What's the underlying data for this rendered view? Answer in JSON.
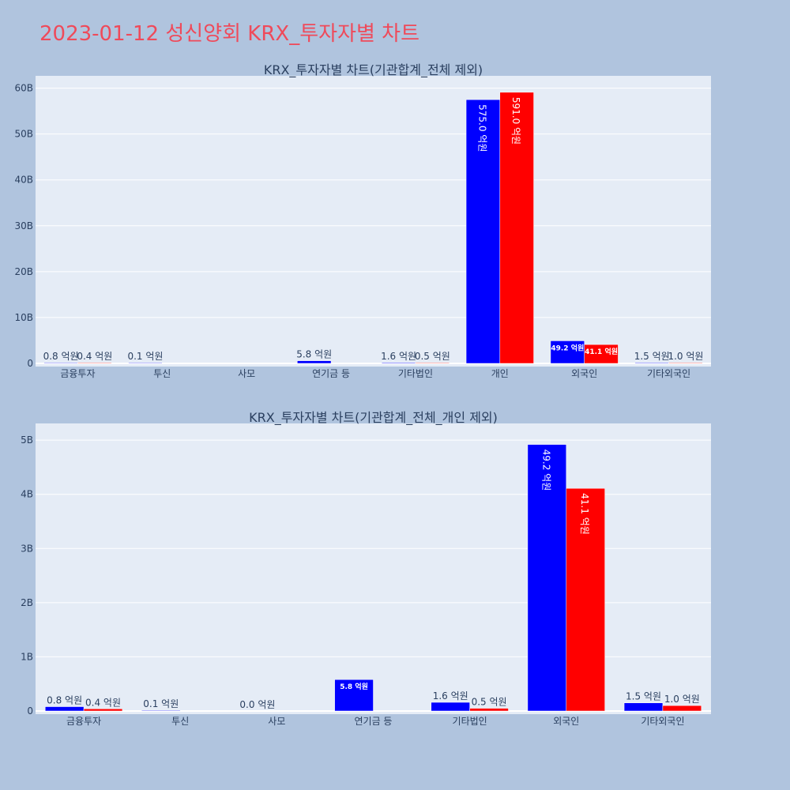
{
  "page": {
    "title": "2023-01-12 성신양회 KRX_투자자별 차트"
  },
  "colors": {
    "buy": "#0000ff",
    "sell": "#ff0000",
    "plot_bg": "#e5ecf6",
    "page_bg": "#b0c4de",
    "title": "#ef4a5a"
  },
  "chart_data": [
    {
      "type": "bar",
      "title": "KRX_투자자별 차트(기관합계_전체 제외)",
      "categories": [
        "금융투자",
        "투신",
        "사모",
        "연기금 등",
        "기타법인",
        "개인",
        "외국인",
        "기타외국인"
      ],
      "series": [
        {
          "values": [
            80000000,
            10000000,
            null,
            580000000,
            160000000,
            57500000000,
            4920000000,
            150000000
          ],
          "labels": [
            "0.8 억원",
            "0.1 억원",
            "",
            "5.8 억원",
            "1.6 억원",
            "575.0 억원",
            "49.2 억원",
            "1.5 억원"
          ]
        },
        {
          "values": [
            40000000,
            null,
            null,
            null,
            50000000,
            59100000000,
            4110000000,
            100000000
          ],
          "labels": [
            "0.4 억원",
            "",
            "",
            "",
            "0.5 억원",
            "591.0 억원",
            "41.1 억원",
            "1.0 억원"
          ]
        }
      ],
      "yticks": [
        "0",
        "10B",
        "20B",
        "30B",
        "40B",
        "50B",
        "60B"
      ],
      "ylim": [
        0,
        62000000000
      ],
      "grid": true
    },
    {
      "type": "bar",
      "title": "KRX_투자자별 차트(기관합계_전체_개인 제외)",
      "categories": [
        "금융투자",
        "투신",
        "사모",
        "연기금 등",
        "기타법인",
        "외국인",
        "기타외국인"
      ],
      "series": [
        {
          "values": [
            80000000,
            10000000,
            0,
            580000000,
            160000000,
            4920000000,
            150000000
          ],
          "labels": [
            "0.8 억원",
            "0.1 억원",
            "0.0 억원",
            "5.8 억원",
            "1.6 억원",
            "49.2 억원",
            "1.5 억원"
          ]
        },
        {
          "values": [
            40000000,
            null,
            null,
            null,
            50000000,
            4110000000,
            100000000
          ],
          "labels": [
            "0.4 억원",
            "",
            "",
            "",
            "0.5 억원",
            "41.1 억원",
            "1.0 억원"
          ]
        }
      ],
      "yticks": [
        "0",
        "1B",
        "2B",
        "3B",
        "4B",
        "5B"
      ],
      "ylim": [
        0,
        5250000000
      ],
      "grid": true
    }
  ]
}
